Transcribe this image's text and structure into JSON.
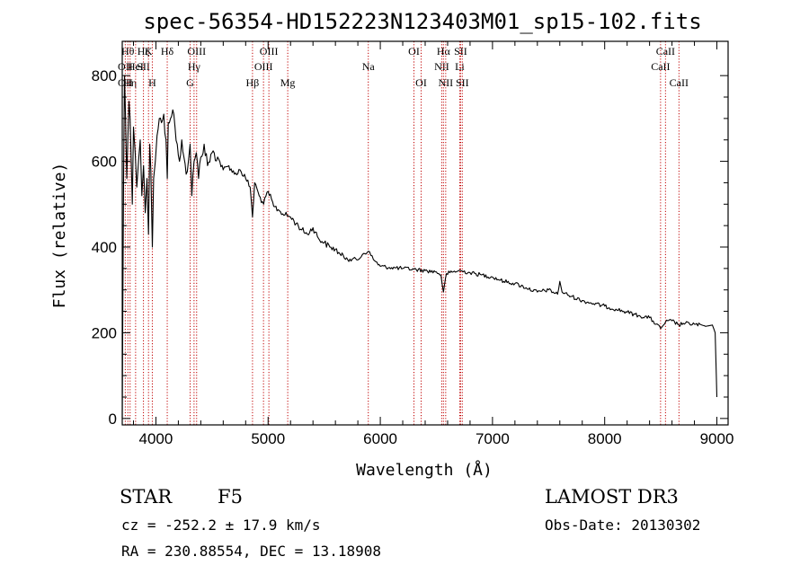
{
  "chart_data": {
    "type": "line",
    "title": "spec-56354-HD152223N123403M01_sp15-102.fits",
    "xlabel": "Wavelength (Å)",
    "ylabel": "Flux (relative)",
    "xlim": [
      3700,
      9100
    ],
    "ylim": [
      -15,
      880
    ],
    "xticks": [
      4000,
      5000,
      6000,
      7000,
      8000,
      9000
    ],
    "yticks": [
      0,
      200,
      400,
      600,
      800
    ],
    "series": [
      {
        "name": "spectrum",
        "x": [
          3700,
          3705,
          3712,
          3720,
          3730,
          3740,
          3750,
          3760,
          3770,
          3780,
          3790,
          3800,
          3815,
          3830,
          3845,
          3860,
          3875,
          3890,
          3905,
          3920,
          3934,
          3945,
          3955,
          3968,
          3980,
          3995,
          4010,
          4030,
          4050,
          4070,
          4090,
          4101,
          4110,
          4130,
          4150,
          4170,
          4190,
          4210,
          4230,
          4250,
          4270,
          4290,
          4305,
          4320,
          4340,
          4360,
          4380,
          4400,
          4430,
          4460,
          4500,
          4550,
          4600,
          4650,
          4700,
          4750,
          4800,
          4840,
          4861,
          4880,
          4920,
          4960,
          5000,
          5050,
          5100,
          5150,
          5200,
          5250,
          5300,
          5350,
          5400,
          5450,
          5500,
          5550,
          5600,
          5650,
          5700,
          5750,
          5800,
          5850,
          5893,
          5950,
          6000,
          6100,
          6200,
          6300,
          6400,
          6500,
          6540,
          6563,
          6590,
          6620,
          6700,
          6800,
          6900,
          7000,
          7100,
          7200,
          7300,
          7400,
          7500,
          7580,
          7600,
          7620,
          7700,
          7800,
          7900,
          8000,
          8100,
          8200,
          8300,
          8400,
          8498,
          8542,
          8600,
          8662,
          8700,
          8800,
          8900,
          8960,
          8985,
          8995,
          9000
        ],
        "y": [
          0,
          250,
          560,
          800,
          700,
          560,
          650,
          740,
          700,
          600,
          500,
          680,
          620,
          540,
          600,
          650,
          520,
          590,
          480,
          560,
          430,
          640,
          580,
          400,
          560,
          600,
          660,
          700,
          690,
          710,
          650,
          560,
          690,
          700,
          720,
          680,
          640,
          600,
          650,
          610,
          570,
          600,
          640,
          520,
          600,
          620,
          560,
          610,
          640,
          590,
          620,
          610,
          580,
          590,
          570,
          580,
          560,
          540,
          470,
          550,
          520,
          500,
          530,
          495,
          485,
          475,
          470,
          455,
          440,
          430,
          445,
          420,
          410,
          400,
          395,
          380,
          375,
          372,
          370,
          385,
          390,
          368,
          355,
          352,
          350,
          348,
          345,
          342,
          335,
          295,
          338,
          340,
          345,
          340,
          335,
          330,
          320,
          315,
          305,
          295,
          300,
          290,
          320,
          295,
          285,
          275,
          268,
          262,
          255,
          248,
          240,
          235,
          210,
          225,
          228,
          218,
          222,
          220,
          215,
          218,
          200,
          100,
          50
        ]
      }
    ],
    "line_markers": [
      {
        "w": 3727,
        "label": "OII",
        "tier": 2
      },
      {
        "w": 3727,
        "label": "OII",
        "tier": 3
      },
      {
        "w": 3750,
        "label": "Hθ",
        "tier": 1
      },
      {
        "w": 3770,
        "label": "Hη",
        "tier": 3
      },
      {
        "w": 3819,
        "label": "HeI",
        "tier": 2
      },
      {
        "w": 3889,
        "label": "Hζ",
        "tier": 1
      },
      {
        "w": 3889,
        "label": "SII",
        "tier": 2
      },
      {
        "w": 3934,
        "label": "K",
        "tier": 1
      },
      {
        "w": 3968,
        "label": "H",
        "tier": 3
      },
      {
        "w": 4101,
        "label": "Hδ",
        "tier": 1
      },
      {
        "w": 4305,
        "label": "G",
        "tier": 3
      },
      {
        "w": 4340,
        "label": "Hγ",
        "tier": 2
      },
      {
        "w": 4363,
        "label": "OIII",
        "tier": 1
      },
      {
        "w": 4861,
        "label": "Hβ",
        "tier": 3
      },
      {
        "w": 4959,
        "label": "OIII",
        "tier": 2
      },
      {
        "w": 5007,
        "label": "OIII",
        "tier": 1
      },
      {
        "w": 5175,
        "label": "Mg",
        "tier": 3
      },
      {
        "w": 5893,
        "label": "Na",
        "tier": 2
      },
      {
        "w": 6300,
        "label": "OI",
        "tier": 1
      },
      {
        "w": 6364,
        "label": "OI",
        "tier": 3
      },
      {
        "w": 6548,
        "label": "NII",
        "tier": 2
      },
      {
        "w": 6563,
        "label": "Hα",
        "tier": 1
      },
      {
        "w": 6583,
        "label": "NII",
        "tier": 3
      },
      {
        "w": 6708,
        "label": "Li",
        "tier": 2
      },
      {
        "w": 6716,
        "label": "SII",
        "tier": 1
      },
      {
        "w": 6731,
        "label": "SII",
        "tier": 3
      },
      {
        "w": 8498,
        "label": "CaII",
        "tier": 2
      },
      {
        "w": 8542,
        "label": "CaII",
        "tier": 1
      },
      {
        "w": 8662,
        "label": "CaII",
        "tier": 3
      }
    ]
  },
  "info": {
    "object_class": "STAR",
    "subclass": "F5",
    "survey": "LAMOST DR3",
    "cz": "cz = -252.2 ± 17.9 km/s",
    "obs_date": "Obs-Date: 20130302",
    "coords": "RA = 230.88554, DEC =  13.18908"
  },
  "colors": {
    "line_marker": "#c00000",
    "spectrum": "#000000",
    "axes": "#000000"
  }
}
